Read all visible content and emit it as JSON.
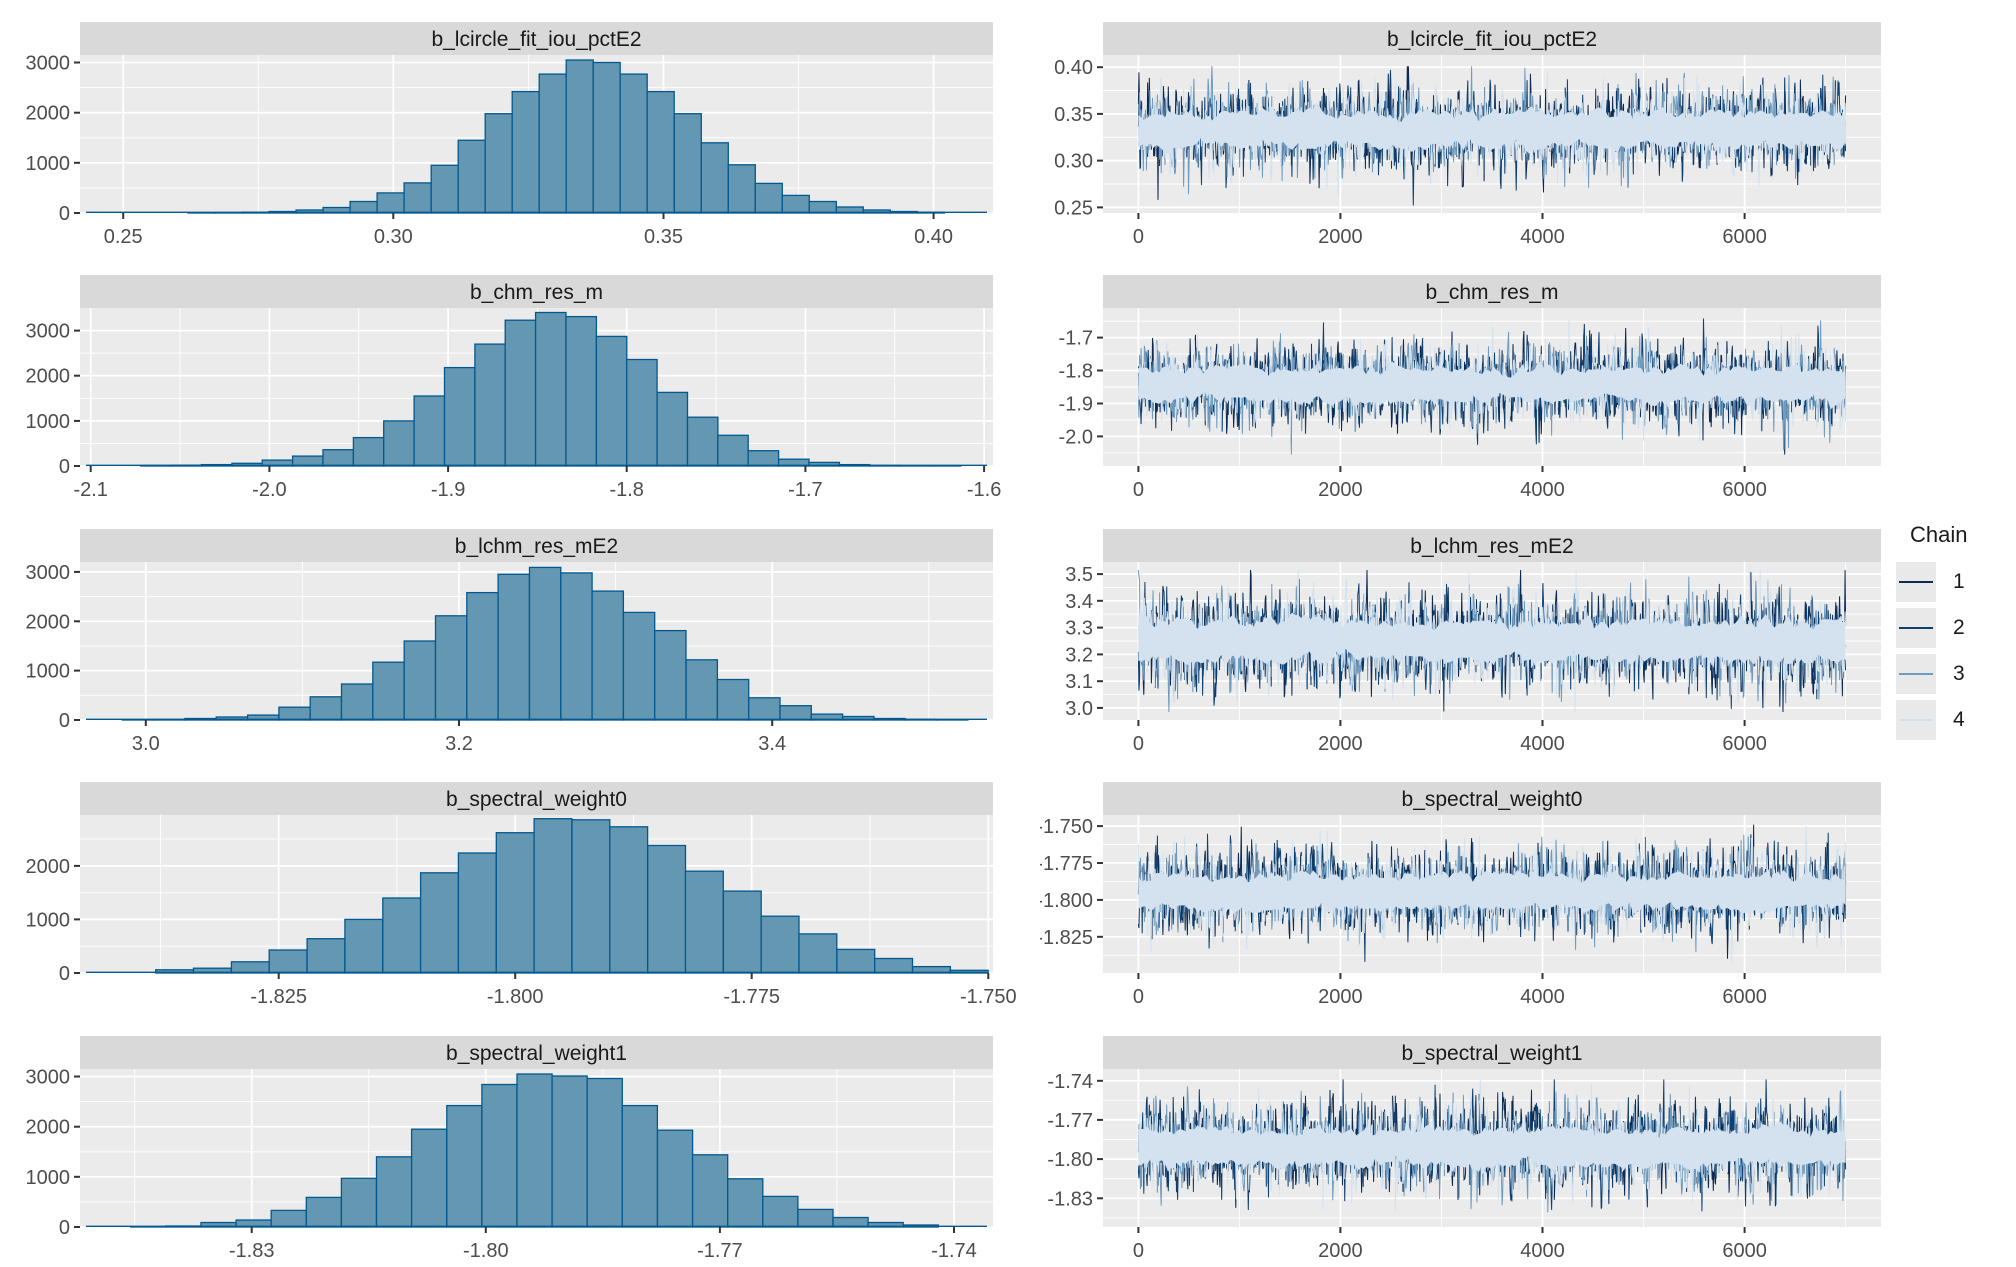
{
  "chart_data": {
    "type": "mcmc-diagnostics",
    "n_chains": 4,
    "n_iterations": 7000,
    "legend": {
      "title": "Chain",
      "entries": [
        {
          "label": "1",
          "color": "#0c2a52"
        },
        {
          "label": "2",
          "color": "#0e4071"
        },
        {
          "label": "3",
          "color": "#6f9bbf"
        },
        {
          "label": "4",
          "color": "#d3e2ee"
        }
      ]
    },
    "colors": {
      "hist_fill": "#6497b1",
      "hist_stroke": "#03598f",
      "panel_bg": "#ebebeb",
      "strip_bg": "#d9d9d9",
      "grid": "#ffffff",
      "tick": "#333333",
      "axis_text": "#4d4d4d",
      "title_text": "#1a1a1a",
      "key_bg": "#e9e9e9"
    },
    "panels": [
      {
        "name": "b_lcircle_fit_iou_pctE2",
        "hist": {
          "type": "histogram",
          "xlim": [
            0.242,
            0.411
          ],
          "ylim": [
            0,
            3150
          ],
          "bin_start": 0.262,
          "bin_width": 0.005,
          "counts": [
            5,
            8,
            15,
            30,
            60,
            110,
            230,
            400,
            600,
            950,
            1450,
            1980,
            2420,
            2770,
            3050,
            3000,
            2770,
            2420,
            1980,
            1400,
            960,
            590,
            350,
            230,
            120,
            60,
            30,
            15
          ],
          "xticks": [
            {
              "v": 0.25,
              "l": "0.25"
            },
            {
              "v": 0.3,
              "l": "0.30"
            },
            {
              "v": 0.35,
              "l": "0.35"
            },
            {
              "v": 0.4,
              "l": "0.40"
            }
          ],
          "xminor": [
            0.275,
            0.325,
            0.375
          ],
          "yticks": [
            {
              "v": 0,
              "l": "0"
            },
            {
              "v": 1000,
              "l": "1000"
            },
            {
              "v": 2000,
              "l": "2000"
            },
            {
              "v": 3000,
              "l": "3000"
            }
          ],
          "yminor": [
            500,
            1500,
            2500
          ]
        },
        "trace": {
          "type": "line",
          "xlim": [
            -350,
            7350
          ],
          "ylim": [
            0.244,
            0.413
          ],
          "mean": 0.333,
          "sd": 0.021,
          "clamp": [
            0.252,
            0.401
          ],
          "seed": 3,
          "xticks": [
            {
              "v": 0,
              "l": "0"
            },
            {
              "v": 2000,
              "l": "2000"
            },
            {
              "v": 4000,
              "l": "4000"
            },
            {
              "v": 6000,
              "l": "6000"
            }
          ],
          "xminor": [
            1000,
            3000,
            5000,
            7000
          ],
          "yticks": [
            {
              "v": 0.4,
              "l": "0.40"
            },
            {
              "v": 0.35,
              "l": "0.35"
            },
            {
              "v": 0.3,
              "l": "0.30"
            },
            {
              "v": 0.25,
              "l": "0.25"
            }
          ],
          "yminor": [
            0.275,
            0.325,
            0.375
          ]
        }
      },
      {
        "name": "b_chm_res_m",
        "hist": {
          "type": "histogram",
          "xlim": [
            -2.106,
            -1.595
          ],
          "ylim": [
            0,
            3500
          ],
          "bin_start": -2.072,
          "bin_width": 0.017,
          "counts": [
            12,
            18,
            30,
            60,
            130,
            220,
            360,
            630,
            1000,
            1550,
            2180,
            2700,
            3230,
            3400,
            3310,
            2870,
            2360,
            1630,
            1080,
            680,
            340,
            150,
            80,
            30,
            12,
            6,
            3
          ],
          "xticks": [
            {
              "v": -2.1,
              "l": "-2.1"
            },
            {
              "v": -2.0,
              "l": "-2.0"
            },
            {
              "v": -1.9,
              "l": "-1.9"
            },
            {
              "v": -1.8,
              "l": "-1.8"
            },
            {
              "v": -1.7,
              "l": "-1.7"
            },
            {
              "v": -1.6,
              "l": "-1.6"
            }
          ],
          "xminor": [
            -2.05,
            -1.95,
            -1.85,
            -1.75,
            -1.65
          ],
          "yticks": [
            {
              "v": 0,
              "l": "0"
            },
            {
              "v": 1000,
              "l": "1000"
            },
            {
              "v": 2000,
              "l": "2000"
            },
            {
              "v": 3000,
              "l": "3000"
            }
          ],
          "yminor": [
            500,
            1500,
            2500
          ]
        },
        "trace": {
          "type": "line",
          "xlim": [
            -350,
            7350
          ],
          "ylim": [
            -2.09,
            -1.61
          ],
          "mean": -1.842,
          "sd": 0.058,
          "clamp": [
            -2.055,
            -1.635
          ],
          "seed": 5,
          "xticks": [
            {
              "v": 0,
              "l": "0"
            },
            {
              "v": 2000,
              "l": "2000"
            },
            {
              "v": 4000,
              "l": "4000"
            },
            {
              "v": 6000,
              "l": "6000"
            }
          ],
          "xminor": [
            1000,
            3000,
            5000,
            7000
          ],
          "yticks": [
            {
              "v": -1.7,
              "l": "-1.7"
            },
            {
              "v": -1.8,
              "l": "-1.8"
            },
            {
              "v": -1.9,
              "l": "-1.9"
            },
            {
              "v": -2.0,
              "l": "-2.0"
            }
          ],
          "yminor": [
            -1.65,
            -1.75,
            -1.85,
            -1.95,
            -2.05
          ]
        }
      },
      {
        "name": "b_lchm_res_mE2",
        "hist": {
          "type": "histogram",
          "xlim": [
            2.958,
            3.541
          ],
          "ylim": [
            0,
            3200
          ],
          "bin_start": 2.985,
          "bin_width": 0.02,
          "counts": [
            5,
            10,
            30,
            60,
            100,
            260,
            470,
            730,
            1170,
            1600,
            2110,
            2580,
            2950,
            3090,
            2980,
            2610,
            2180,
            1810,
            1220,
            820,
            450,
            290,
            120,
            70,
            30,
            12,
            5
          ],
          "xticks": [
            {
              "v": 3.0,
              "l": "3.0"
            },
            {
              "v": 3.2,
              "l": "3.2"
            },
            {
              "v": 3.4,
              "l": "3.4"
            }
          ],
          "xminor": [
            3.1,
            3.3,
            3.5
          ],
          "yticks": [
            {
              "v": 0,
              "l": "0"
            },
            {
              "v": 1000,
              "l": "1000"
            },
            {
              "v": 2000,
              "l": "2000"
            },
            {
              "v": 3000,
              "l": "3000"
            }
          ],
          "yminor": [
            500,
            1500,
            2500
          ]
        },
        "trace": {
          "type": "line",
          "xlim": [
            -350,
            7350
          ],
          "ylim": [
            2.955,
            3.545
          ],
          "mean": 3.251,
          "sd": 0.083,
          "clamp": [
            2.985,
            3.515
          ],
          "seed": 7,
          "xticks": [
            {
              "v": 0,
              "l": "0"
            },
            {
              "v": 2000,
              "l": "2000"
            },
            {
              "v": 4000,
              "l": "4000"
            },
            {
              "v": 6000,
              "l": "6000"
            }
          ],
          "xminor": [
            1000,
            3000,
            5000,
            7000
          ],
          "yticks": [
            {
              "v": 3.5,
              "l": "3.5"
            },
            {
              "v": 3.4,
              "l": "3.4"
            },
            {
              "v": 3.3,
              "l": "3.3"
            },
            {
              "v": 3.2,
              "l": "3.2"
            },
            {
              "v": 3.1,
              "l": "3.1"
            },
            {
              "v": 3.0,
              "l": "3.0"
            }
          ],
          "yminor": [
            3.05,
            3.15,
            3.25,
            3.35,
            3.45
          ]
        }
      },
      {
        "name": "b_spectral_weight0",
        "hist": {
          "type": "histogram",
          "xlim": [
            -1.846,
            -1.7495
          ],
          "ylim": [
            0,
            2950
          ],
          "bin_start": -1.838,
          "bin_width": 0.004,
          "counts": [
            60,
            90,
            210,
            430,
            640,
            1000,
            1400,
            1870,
            2240,
            2620,
            2880,
            2860,
            2730,
            2380,
            1900,
            1530,
            1060,
            730,
            440,
            270,
            120,
            50
          ],
          "xticks": [
            {
              "v": -1.825,
              "l": "-1.825"
            },
            {
              "v": -1.8,
              "l": "-1.800"
            },
            {
              "v": -1.775,
              "l": "-1.775"
            },
            {
              "v": -1.75,
              "l": "-1.750"
            }
          ],
          "xminor": [
            -1.8375,
            -1.8125,
            -1.7875,
            -1.7625
          ],
          "yticks": [
            {
              "v": 0,
              "l": "0"
            },
            {
              "v": 1000,
              "l": "1000"
            },
            {
              "v": 2000,
              "l": "2000"
            }
          ],
          "yminor": [
            500,
            1500,
            2500
          ]
        },
        "trace": {
          "type": "line",
          "xlim": [
            -350,
            7350
          ],
          "ylim": [
            -1.8495,
            -1.7425
          ],
          "mean": -1.7945,
          "sd": 0.0135,
          "clamp": [
            -1.842,
            -1.749
          ],
          "seed": 11,
          "xticks": [
            {
              "v": 0,
              "l": "0"
            },
            {
              "v": 2000,
              "l": "2000"
            },
            {
              "v": 4000,
              "l": "4000"
            },
            {
              "v": 6000,
              "l": "6000"
            }
          ],
          "xminor": [
            1000,
            3000,
            5000,
            7000
          ],
          "yticks": [
            {
              "v": -1.75,
              "l": "-1.750"
            },
            {
              "v": -1.775,
              "l": "-1.775"
            },
            {
              "v": -1.8,
              "l": "-1.800"
            },
            {
              "v": -1.825,
              "l": "-1.825"
            }
          ],
          "yminor": [
            -1.7625,
            -1.7875,
            -1.8125,
            -1.8375
          ]
        }
      },
      {
        "name": "b_spectral_weight1",
        "hist": {
          "type": "histogram",
          "xlim": [
            -1.852,
            -1.735
          ],
          "ylim": [
            0,
            3150
          ],
          "bin_start": -1.8455,
          "bin_width": 0.0045,
          "counts": [
            8,
            20,
            90,
            140,
            330,
            590,
            970,
            1400,
            1950,
            2420,
            2840,
            3050,
            3010,
            2960,
            2420,
            1930,
            1440,
            960,
            610,
            350,
            190,
            90,
            40
          ],
          "xticks": [
            {
              "v": -1.83,
              "l": "-1.83"
            },
            {
              "v": -1.8,
              "l": "-1.80"
            },
            {
              "v": -1.77,
              "l": "-1.77"
            },
            {
              "v": -1.74,
              "l": "-1.74"
            }
          ],
          "xminor": [
            -1.845,
            -1.815,
            -1.785,
            -1.755
          ],
          "yticks": [
            {
              "v": 0,
              "l": "0"
            },
            {
              "v": 1000,
              "l": "1000"
            },
            {
              "v": 2000,
              "l": "2000"
            },
            {
              "v": 3000,
              "l": "3000"
            }
          ],
          "yminor": [
            500,
            1500,
            2500
          ]
        },
        "trace": {
          "type": "line",
          "xlim": [
            -350,
            7350
          ],
          "ylim": [
            -1.852,
            -1.731
          ],
          "mean": -1.791,
          "sd": 0.016,
          "clamp": [
            -1.844,
            -1.739
          ],
          "seed": 19,
          "xticks": [
            {
              "v": 0,
              "l": "0"
            },
            {
              "v": 2000,
              "l": "2000"
            },
            {
              "v": 4000,
              "l": "4000"
            },
            {
              "v": 6000,
              "l": "6000"
            }
          ],
          "xminor": [
            1000,
            3000,
            5000,
            7000
          ],
          "yticks": [
            {
              "v": -1.74,
              "l": "-1.74"
            },
            {
              "v": -1.77,
              "l": "-1.77"
            },
            {
              "v": -1.8,
              "l": "-1.80"
            },
            {
              "v": -1.83,
              "l": "-1.83"
            }
          ],
          "yminor": [
            -1.755,
            -1.785,
            -1.815,
            -1.845
          ]
        }
      }
    ]
  }
}
